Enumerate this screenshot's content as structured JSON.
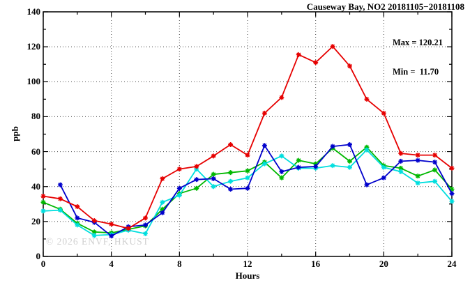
{
  "chart_data": {
    "type": "line",
    "title": "Causeway Bay, NO2 20181105−20181108",
    "annotations": {
      "max_label": "Max = 120.21",
      "min_label": "Min =  11.70"
    },
    "xlabel": "Hours",
    "ylabel": "ppb",
    "watermark": "© 2026 ENVF, HKUST",
    "xlim": [
      0,
      24
    ],
    "ylim": [
      0,
      140
    ],
    "xticks": [
      0,
      4,
      8,
      12,
      16,
      20,
      24
    ],
    "yticks": [
      0,
      20,
      40,
      60,
      80,
      100,
      120,
      140
    ],
    "minor_xticks": [
      2,
      6,
      10,
      14,
      18,
      22
    ],
    "minor_yticks": [
      10,
      30,
      50,
      70,
      90,
      110,
      130
    ],
    "grid": true,
    "grid_style": "dotted",
    "legend_position": "none",
    "marker": "asterisk",
    "frame_color": "#000000",
    "series": [
      {
        "name": "green",
        "color": "#00b800",
        "x": [
          0,
          1,
          2,
          3,
          4,
          5,
          6,
          7,
          8,
          9,
          10,
          11,
          12,
          13,
          14,
          15,
          16,
          17,
          18,
          19,
          20,
          21,
          22,
          23,
          24
        ],
        "values": [
          31,
          27,
          19,
          14,
          13.5,
          15.5,
          17.5,
          27,
          36,
          39,
          47,
          48,
          49,
          54,
          45,
          55,
          53,
          62,
          54.5,
          62.5,
          52,
          50.5,
          46,
          49.5,
          38.5
        ]
      },
      {
        "name": "cyan",
        "color": "#00dede",
        "x": [
          0,
          1,
          2,
          3,
          4,
          5,
          6,
          7,
          8,
          9,
          10,
          11,
          12,
          13,
          14,
          15,
          16,
          17,
          18,
          19,
          20,
          21,
          22,
          23,
          24
        ],
        "values": [
          26,
          26.5,
          18,
          12,
          12.5,
          15,
          13,
          31,
          35,
          50,
          40,
          43,
          45,
          53,
          57.5,
          50.5,
          50.5,
          52,
          51,
          61,
          51,
          48.5,
          42,
          43,
          31.5
        ]
      },
      {
        "name": "blue",
        "color": "#0000cc",
        "x": [
          1,
          2,
          3,
          4,
          5,
          6,
          7,
          8,
          9,
          10,
          11,
          12,
          13,
          14,
          15,
          16,
          17,
          18,
          19,
          20,
          21,
          22,
          23,
          24
        ],
        "values": [
          41,
          22,
          19.5,
          11.7,
          17,
          18,
          25,
          39,
          44,
          44.5,
          38.5,
          39,
          63.5,
          48.5,
          51,
          51.5,
          63,
          64,
          41,
          45,
          54.5,
          55,
          54,
          36
        ]
      },
      {
        "name": "red",
        "color": "#e60000",
        "x": [
          0,
          1,
          2,
          3,
          4,
          5,
          6,
          7,
          8,
          9,
          10,
          11,
          12,
          13,
          14,
          15,
          16,
          17,
          18,
          19,
          20,
          21,
          22,
          23,
          24
        ],
        "values": [
          34.5,
          33,
          28.5,
          20.5,
          18.5,
          16,
          22,
          44.5,
          50,
          51.5,
          57.5,
          64,
          58,
          82,
          91,
          115.5,
          111,
          120.21,
          109,
          90,
          82,
          59,
          58,
          58,
          50.5
        ]
      }
    ]
  }
}
